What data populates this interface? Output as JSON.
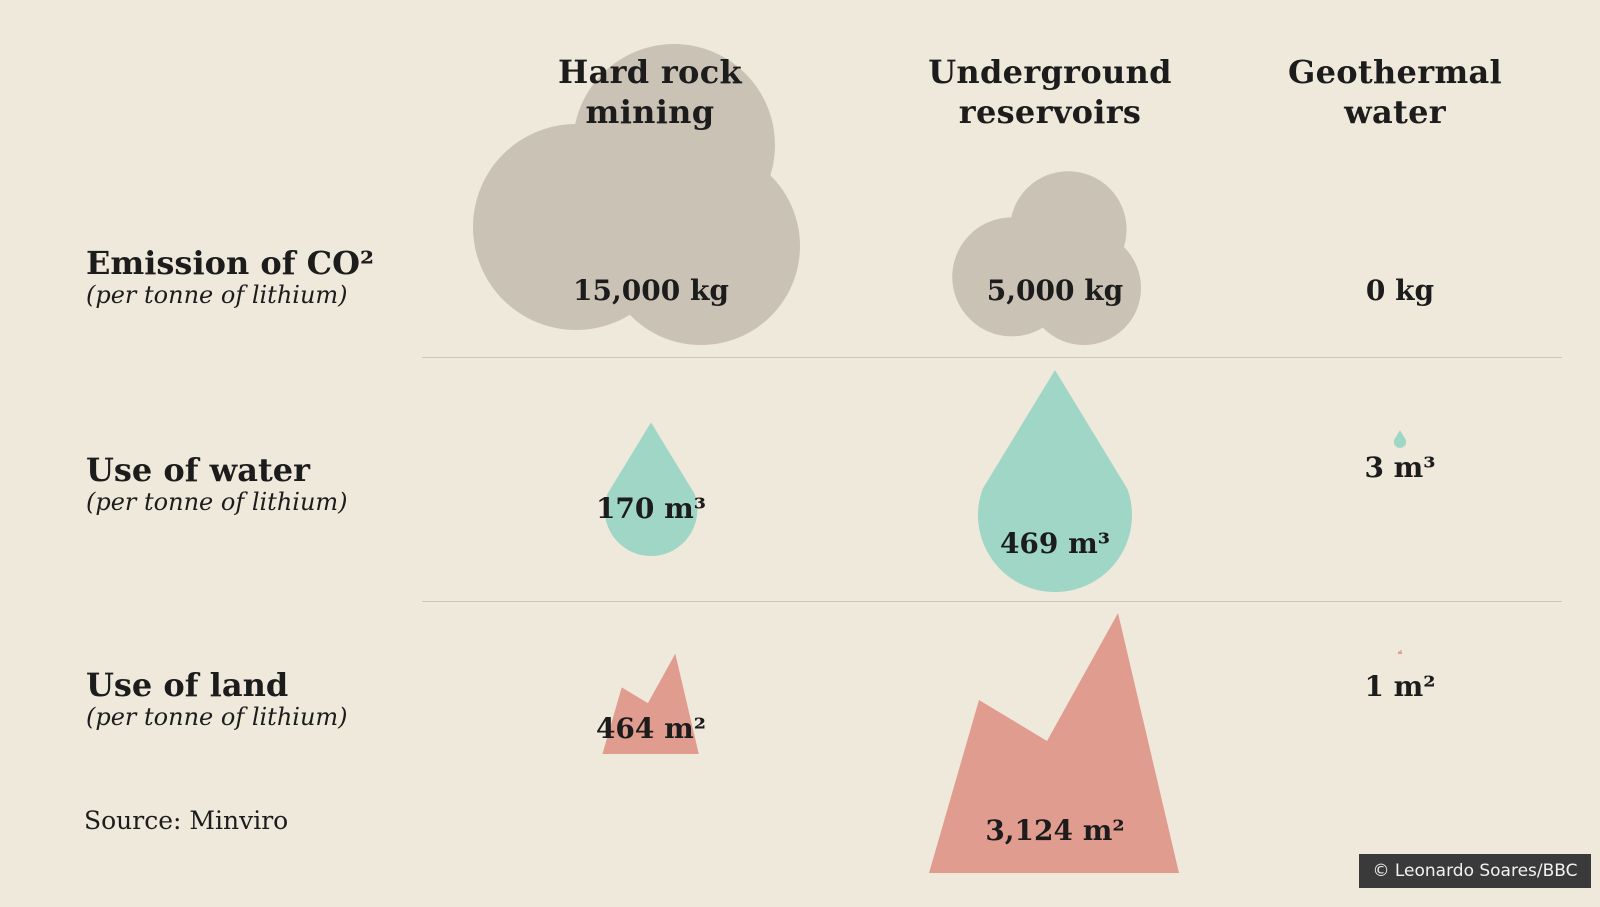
{
  "chart_data": {
    "type": "pictogram",
    "columns": [
      {
        "line1": "Hard rock",
        "line2": "mining"
      },
      {
        "line1": "Underground",
        "line2": "reservoirs"
      },
      {
        "line1": "Geothermal",
        "line2": "water"
      }
    ],
    "rows": [
      {
        "metric": "emission",
        "label": "Emission of CO²",
        "sublabel": "(per tonne of lithium)",
        "unit": "kg",
        "values": [
          15000,
          5000,
          0
        ],
        "value_labels": [
          "15,000 kg",
          "5,000 kg",
          "0 kg"
        ],
        "color": "#c9c2b5",
        "shape": "cloud"
      },
      {
        "metric": "water",
        "label": "Use of water",
        "sublabel": "(per tonne of lithium)",
        "unit": "m³",
        "values": [
          170,
          469,
          3
        ],
        "value_labels": [
          "170 m³",
          "469 m³",
          "3 m³"
        ],
        "color": "#9fd6c6",
        "shape": "drop"
      },
      {
        "metric": "land",
        "label": "Use of land",
        "sublabel": "(per tonne of lithium)",
        "unit": "m²",
        "values": [
          464,
          3124,
          1
        ],
        "value_labels": [
          "464 m²",
          "3,124 m²",
          "1 m²"
        ],
        "color": "#e09c8f",
        "shape": "mountain"
      }
    ]
  },
  "source": "Source: Minviro",
  "credit": "© Leonardo Soares/BBC"
}
